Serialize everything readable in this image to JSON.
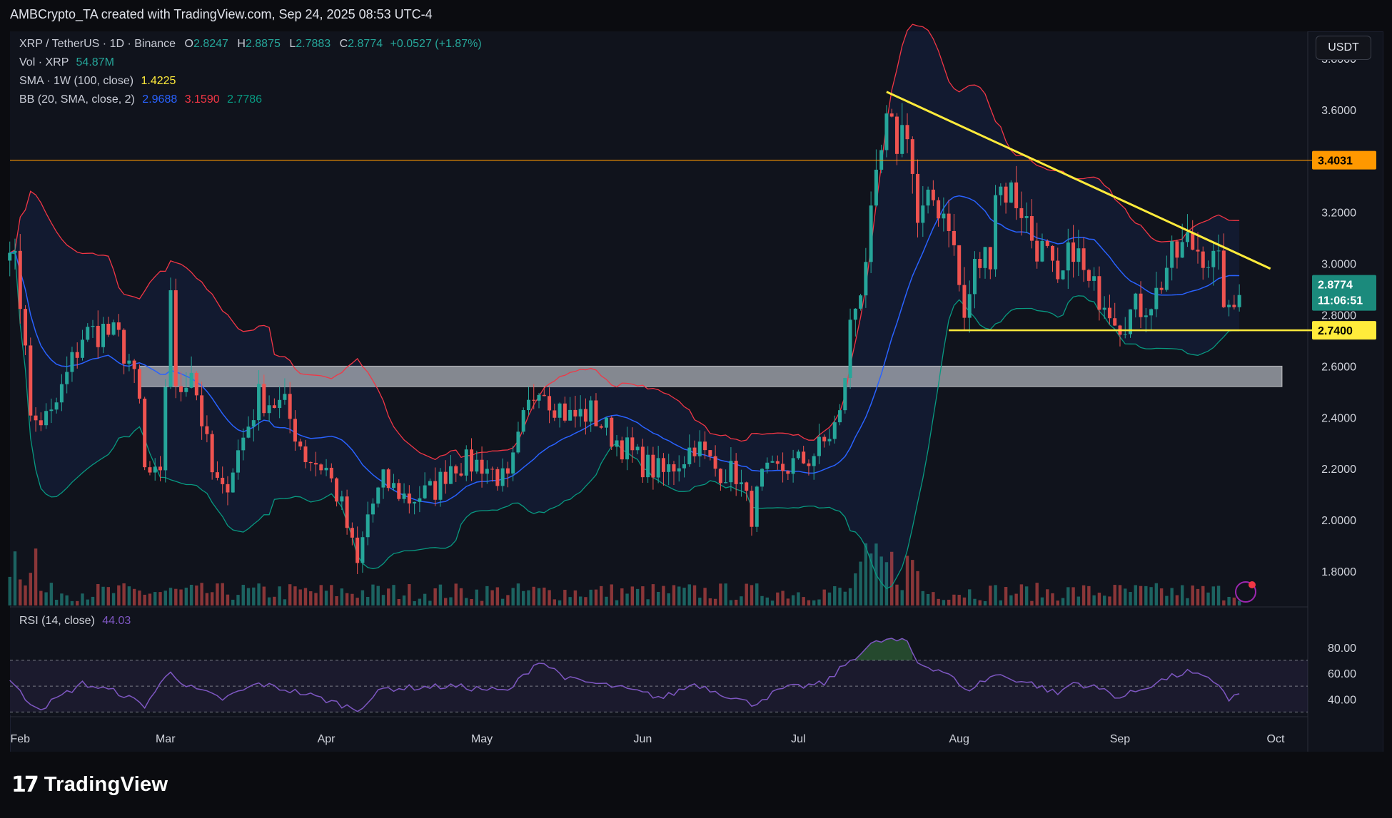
{
  "header": {
    "credit": "AMBCrypto_TA created with TradingView.com, Sep 24, 2025 08:53 UTC-4"
  },
  "legend": {
    "symbol": "XRP / TetherUS · 1D · Binance",
    "open_label": "O",
    "open": "2.8247",
    "high_label": "H",
    "high": "2.8875",
    "low_label": "L",
    "low": "2.7883",
    "close_label": "C",
    "close": "2.8774",
    "change": "+0.0527 (+1.87%)",
    "vol_label": "Vol · XRP",
    "vol_value": "54.87M",
    "sma_label": "SMA · 1W (100, close)",
    "sma_value": "1.4225",
    "bb_label": "BB (20, SMA, close, 2)",
    "bb_basis": "2.9688",
    "bb_upper": "3.1590",
    "bb_lower": "2.7786",
    "rsi_label": "RSI (14, close)",
    "rsi_value": "44.03"
  },
  "currency_button": "USDT",
  "price_badges": {
    "resistance": "3.4031",
    "current_price": "2.8774",
    "countdown": "11:06:51",
    "support": "2.7400"
  },
  "colors": {
    "up": "#26a69a",
    "down": "#ef5350",
    "bb_basis": "#2962ff",
    "bb_upper": "#f23645",
    "bb_lower": "#089981",
    "trendline": "#ffeb3b",
    "resistance": "#ff9800",
    "rsi": "#7e57c2",
    "sma": "#ffeb3b",
    "zone": "#b2b5be"
  },
  "footer": {
    "brand": "TradingView",
    "logo_mark": "17"
  },
  "chart_data": {
    "type": "candlestick",
    "title": "XRP / TetherUS · 1D · Binance",
    "x_ticks": [
      "Feb",
      "Mar",
      "Apr",
      "May",
      "Jun",
      "Jul",
      "Aug",
      "Sep",
      "Oct"
    ],
    "x_tick_dates": [
      "2025-02-01",
      "2025-03-01",
      "2025-04-01",
      "2025-05-01",
      "2025-06-01",
      "2025-07-01",
      "2025-08-01",
      "2025-09-01",
      "2025-10-01"
    ],
    "y_ticks": [
      "1.8000",
      "2.0000",
      "2.2000",
      "2.4000",
      "2.6000",
      "2.8000",
      "3.0000",
      "3.2000",
      "3.4000",
      "3.6000",
      "3.8000"
    ],
    "ylim": [
      1.75,
      3.95
    ],
    "date_range": [
      "2025-01-30",
      "2025-09-24"
    ],
    "anchors": [
      [
        "2025-01-30",
        3.12
      ],
      [
        "2025-02-02",
        2.72
      ],
      [
        "2025-02-03",
        2.38
      ],
      [
        "2025-02-07",
        2.4
      ],
      [
        "2025-02-13",
        2.72
      ],
      [
        "2025-02-17",
        2.74
      ],
      [
        "2025-02-20",
        2.7
      ],
      [
        "2025-02-22",
        2.62
      ],
      [
        "2025-02-24",
        2.45
      ],
      [
        "2025-02-25",
        2.19
      ],
      [
        "2025-02-28",
        2.15
      ],
      [
        "2025-03-02",
        2.92
      ],
      [
        "2025-03-03",
        2.48
      ],
      [
        "2025-03-06",
        2.6
      ],
      [
        "2025-03-10",
        2.18
      ],
      [
        "2025-03-12",
        2.1
      ],
      [
        "2025-03-16",
        2.32
      ],
      [
        "2025-03-19",
        2.48
      ],
      [
        "2025-03-24",
        2.44
      ],
      [
        "2025-03-28",
        2.25
      ],
      [
        "2025-04-01",
        2.2
      ],
      [
        "2025-04-04",
        2.05
      ],
      [
        "2025-04-07",
        1.82
      ],
      [
        "2025-04-09",
        2.02
      ],
      [
        "2025-04-12",
        2.15
      ],
      [
        "2025-04-17",
        2.08
      ],
      [
        "2025-04-22",
        2.12
      ],
      [
        "2025-04-25",
        2.22
      ],
      [
        "2025-05-01",
        2.22
      ],
      [
        "2025-05-06",
        2.14
      ],
      [
        "2025-05-09",
        2.38
      ],
      [
        "2025-05-12",
        2.55
      ],
      [
        "2025-05-14",
        2.48
      ],
      [
        "2025-05-18",
        2.4
      ],
      [
        "2025-05-22",
        2.42
      ],
      [
        "2025-05-26",
        2.33
      ],
      [
        "2025-06-01",
        2.22
      ],
      [
        "2025-06-05",
        2.18
      ],
      [
        "2025-06-09",
        2.25
      ],
      [
        "2025-06-11",
        2.3
      ],
      [
        "2025-06-15",
        2.2
      ],
      [
        "2025-06-19",
        2.18
      ],
      [
        "2025-06-22",
        2.02
      ],
      [
        "2025-06-24",
        2.16
      ],
      [
        "2025-06-28",
        2.2
      ],
      [
        "2025-07-03",
        2.24
      ],
      [
        "2025-07-06",
        2.3
      ],
      [
        "2025-07-09",
        2.4
      ],
      [
        "2025-07-11",
        2.75
      ],
      [
        "2025-07-13",
        2.92
      ],
      [
        "2025-07-15",
        3.15
      ],
      [
        "2025-07-17",
        3.42
      ],
      [
        "2025-07-18",
        3.52
      ],
      [
        "2025-07-20",
        3.48
      ],
      [
        "2025-07-22",
        3.55
      ],
      [
        "2025-07-24",
        3.15
      ],
      [
        "2025-07-27",
        3.25
      ],
      [
        "2025-07-30",
        3.18
      ],
      [
        "2025-08-02",
        2.78
      ],
      [
        "2025-08-04",
        2.98
      ],
      [
        "2025-08-07",
        3.05
      ],
      [
        "2025-08-08",
        3.3
      ],
      [
        "2025-08-11",
        3.28
      ],
      [
        "2025-08-13",
        3.22
      ],
      [
        "2025-08-15",
        3.1
      ],
      [
        "2025-08-18",
        3.02
      ],
      [
        "2025-08-20",
        2.88
      ],
      [
        "2025-08-23",
        3.08
      ],
      [
        "2025-08-26",
        2.9
      ],
      [
        "2025-08-29",
        2.88
      ],
      [
        "2025-09-01",
        2.78
      ],
      [
        "2025-09-04",
        2.82
      ],
      [
        "2025-09-08",
        2.88
      ],
      [
        "2025-09-10",
        2.99
      ],
      [
        "2025-09-14",
        3.08
      ],
      [
        "2025-09-17",
        3.05
      ],
      [
        "2025-09-20",
        2.98
      ],
      [
        "2025-09-22",
        2.78
      ],
      [
        "2025-09-24",
        2.8774
      ]
    ],
    "horizontal_levels": [
      {
        "label": "3.4031",
        "value": 3.4031
      },
      {
        "label": "2.7400",
        "value": 2.74,
        "from": "2025-07-30"
      }
    ],
    "trendline": [
      [
        "2025-07-18",
        3.67
      ],
      [
        "2025-09-30",
        2.98
      ]
    ],
    "zone": {
      "from": "2025-02-24",
      "to": "2025-10-01",
      "low": 2.52,
      "high": 2.6
    },
    "rsi": {
      "y_ticks": [
        "40.00",
        "60.00",
        "80.00"
      ],
      "ylim": [
        28,
        92
      ],
      "bands": [
        30,
        50,
        70
      ],
      "anchors": [
        [
          "2025-01-30",
          55
        ],
        [
          "2025-02-02",
          40
        ],
        [
          "2025-02-05",
          33
        ],
        [
          "2025-02-13",
          52
        ],
        [
          "2025-02-20",
          45
        ],
        [
          "2025-02-25",
          35
        ],
        [
          "2025-03-02",
          62
        ],
        [
          "2025-03-05",
          50
        ],
        [
          "2025-03-12",
          40
        ],
        [
          "2025-03-19",
          52
        ],
        [
          "2025-03-28",
          44
        ],
        [
          "2025-04-07",
          32
        ],
        [
          "2025-04-12",
          48
        ],
        [
          "2025-04-25",
          50
        ],
        [
          "2025-05-06",
          46
        ],
        [
          "2025-05-12",
          70
        ],
        [
          "2025-05-18",
          55
        ],
        [
          "2025-05-26",
          50
        ],
        [
          "2025-06-05",
          41
        ],
        [
          "2025-06-11",
          52
        ],
        [
          "2025-06-22",
          36
        ],
        [
          "2025-06-28",
          48
        ],
        [
          "2025-07-06",
          52
        ],
        [
          "2025-07-11",
          70
        ],
        [
          "2025-07-15",
          82
        ],
        [
          "2025-07-18",
          86
        ],
        [
          "2025-07-22",
          84
        ],
        [
          "2025-07-24",
          68
        ],
        [
          "2025-07-30",
          60
        ],
        [
          "2025-08-02",
          46
        ],
        [
          "2025-08-08",
          59
        ],
        [
          "2025-08-15",
          52
        ],
        [
          "2025-08-20",
          44
        ],
        [
          "2025-08-23",
          53
        ],
        [
          "2025-08-29",
          47
        ],
        [
          "2025-09-01",
          41
        ],
        [
          "2025-09-10",
          56
        ],
        [
          "2025-09-14",
          61
        ],
        [
          "2025-09-20",
          52
        ],
        [
          "2025-09-22",
          40
        ],
        [
          "2025-09-24",
          44.03
        ]
      ]
    }
  }
}
